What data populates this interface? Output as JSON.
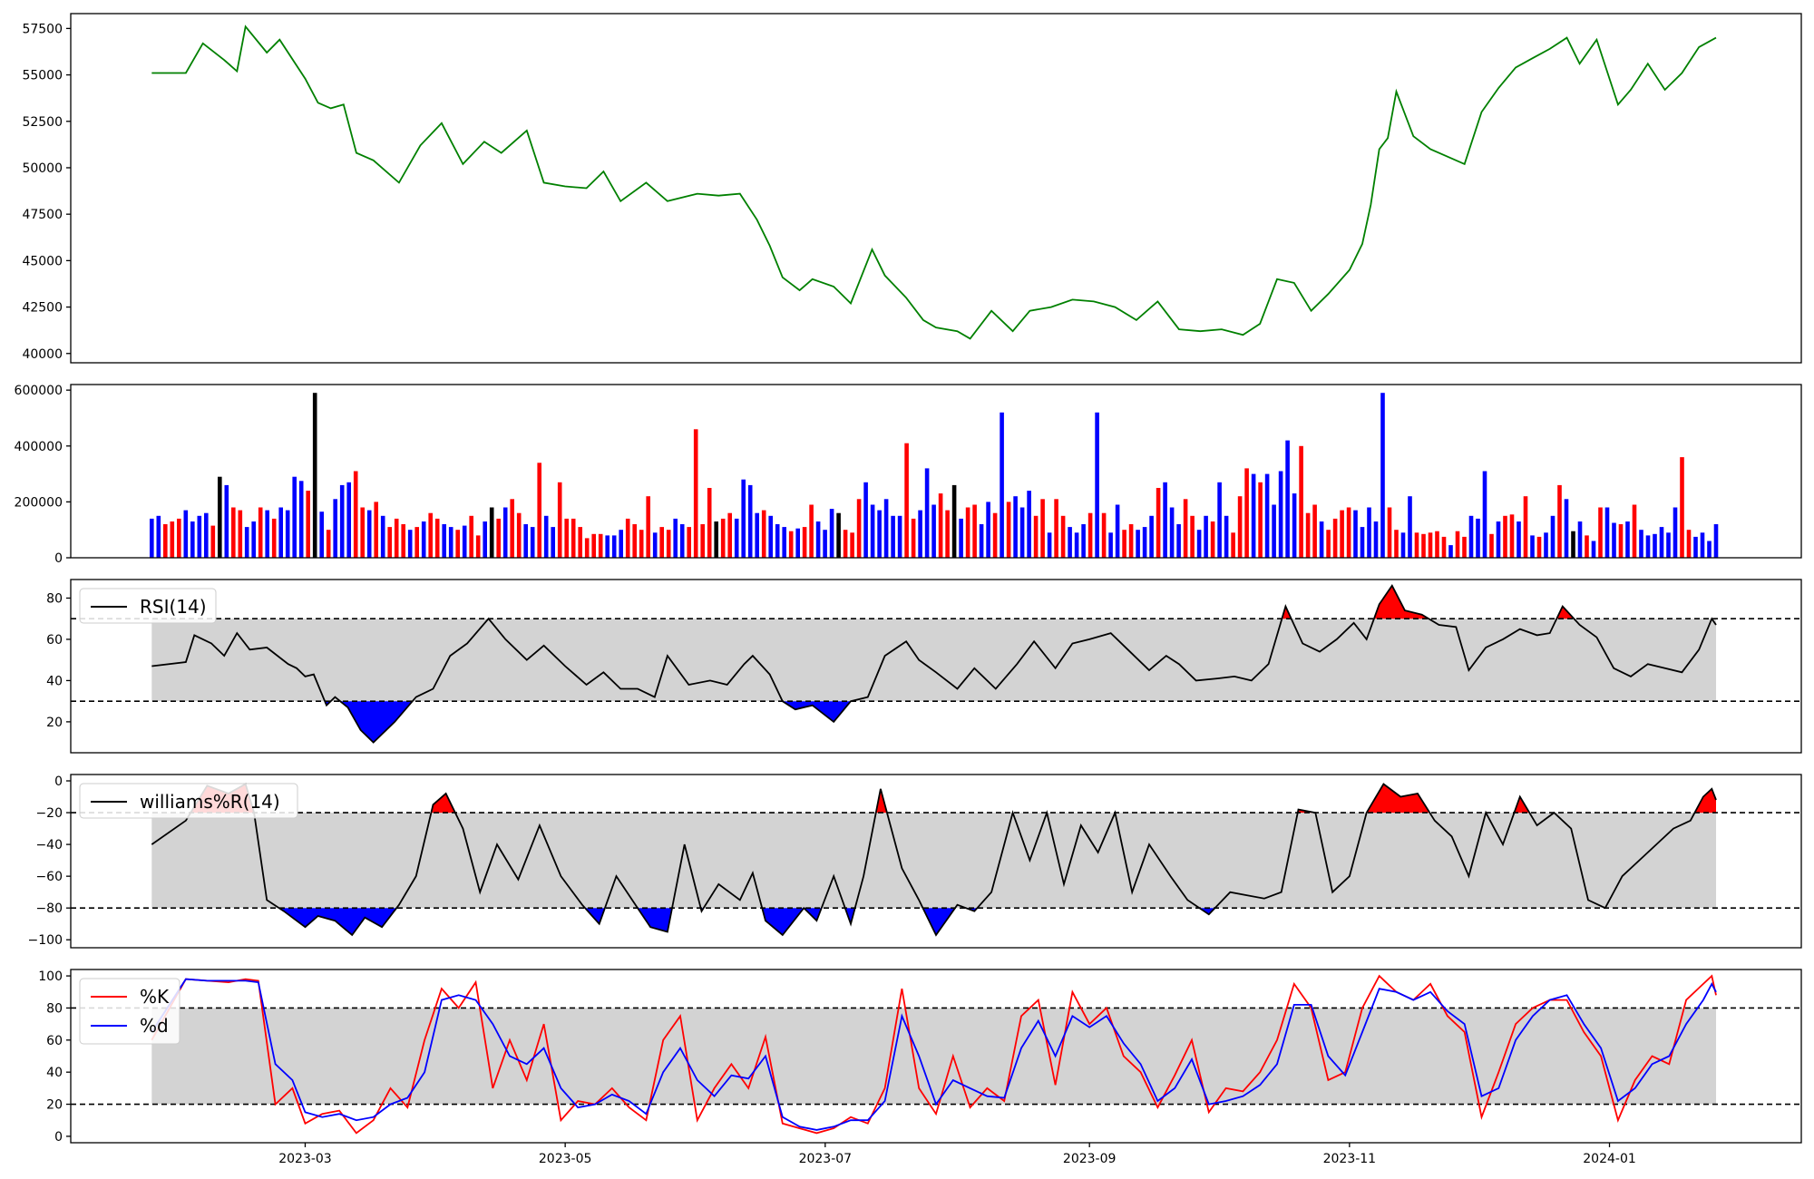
{
  "chart_data": [
    {
      "type": "line",
      "name": "price",
      "color": "#008000",
      "ylim": [
        39500,
        58300
      ],
      "yticks": [
        40000,
        42500,
        45000,
        47500,
        50000,
        52500,
        55000,
        57500
      ],
      "x": [
        "2023-01-24",
        "2023-02-01",
        "2023-02-05",
        "2023-02-10",
        "2023-02-13",
        "2023-02-15",
        "2023-02-20",
        "2023-02-23",
        "2023-03-01",
        "2023-03-04",
        "2023-03-07",
        "2023-03-10",
        "2023-03-13",
        "2023-03-17",
        "2023-03-23",
        "2023-03-28",
        "2023-04-02",
        "2023-04-07",
        "2023-04-12",
        "2023-04-16",
        "2023-04-22",
        "2023-04-26",
        "2023-05-01",
        "2023-05-06",
        "2023-05-10",
        "2023-05-14",
        "2023-05-20",
        "2023-05-25",
        "2023-06-01",
        "2023-06-06",
        "2023-06-11",
        "2023-06-15",
        "2023-06-18",
        "2023-06-21",
        "2023-06-25",
        "2023-06-28",
        "2023-07-03",
        "2023-07-07",
        "2023-07-12",
        "2023-07-15",
        "2023-07-20",
        "2023-07-24",
        "2023-07-27",
        "2023-08-01",
        "2023-08-04",
        "2023-08-09",
        "2023-08-14",
        "2023-08-18",
        "2023-08-23",
        "2023-08-28",
        "2023-09-02",
        "2023-09-07",
        "2023-09-12",
        "2023-09-17",
        "2023-09-22",
        "2023-09-27",
        "2023-10-02",
        "2023-10-07",
        "2023-10-11",
        "2023-10-15",
        "2023-10-19",
        "2023-10-23",
        "2023-10-27",
        "2023-11-01",
        "2023-11-04",
        "2023-11-06",
        "2023-11-08",
        "2023-11-10",
        "2023-11-12",
        "2023-11-16",
        "2023-11-20",
        "2023-11-24",
        "2023-11-28",
        "2023-12-02",
        "2023-12-06",
        "2023-12-10",
        "2023-12-14",
        "2023-12-18",
        "2023-12-22",
        "2023-12-25",
        "2023-12-29",
        "2024-01-03",
        "2024-01-06",
        "2024-01-10",
        "2024-01-14",
        "2024-01-18",
        "2024-01-22",
        "2024-01-26"
      ],
      "y": [
        55100,
        55100,
        56700,
        55800,
        55200,
        57600,
        56200,
        56900,
        54800,
        53500,
        53200,
        53400,
        50800,
        50400,
        49200,
        51200,
        52400,
        50200,
        51400,
        50800,
        52000,
        49200,
        49000,
        48900,
        49800,
        48200,
        49200,
        48200,
        48600,
        48500,
        48600,
        47200,
        45800,
        44100,
        43400,
        44000,
        43600,
        42700,
        45600,
        44200,
        43000,
        41800,
        41400,
        41200,
        40800,
        42300,
        41200,
        42300,
        42500,
        42900,
        42800,
        42500,
        41800,
        42800,
        41300,
        41200,
        41300,
        41000,
        41600,
        44000,
        43800,
        42300,
        43200,
        44500,
        45900,
        48000,
        51000,
        51600,
        54100,
        51700,
        51000,
        50600,
        50200,
        53000,
        54300,
        55400,
        55900,
        56400,
        57000,
        55600,
        56900,
        53400,
        54200,
        55600,
        54200,
        55100,
        56500,
        57000
      ]
    },
    {
      "type": "bar",
      "name": "volume",
      "ylim": [
        0,
        620000
      ],
      "yticks": [
        0,
        200000,
        400000,
        600000
      ],
      "color_codes": {
        "r": "#ff0000",
        "b": "#0000ff",
        "k": "#000000"
      },
      "start": "2023-01-24",
      "end": "2024-01-26",
      "values": [
        140000,
        150000,
        120000,
        130000,
        140000,
        170000,
        130000,
        150000,
        160000,
        115000,
        290000,
        260000,
        180000,
        170000,
        110000,
        130000,
        180000,
        170000,
        140000,
        180000,
        170000,
        290000,
        275000,
        240000,
        590000,
        165000,
        100000,
        210000,
        260000,
        270000,
        310000,
        180000,
        170000,
        200000,
        150000,
        110000,
        140000,
        120000,
        100000,
        110000,
        130000,
        160000,
        140000,
        120000,
        110000,
        100000,
        115000,
        150000,
        80000,
        130000,
        180000,
        140000,
        180000,
        210000,
        160000,
        120000,
        110000,
        340000,
        150000,
        110000,
        270000,
        140000,
        140000,
        110000,
        70000,
        85000,
        85000,
        80000,
        80000,
        100000,
        140000,
        120000,
        100000,
        220000,
        90000,
        110000,
        100000,
        140000,
        120000,
        110000,
        460000,
        120000,
        250000,
        130000,
        140000,
        160000,
        140000,
        280000,
        260000,
        160000,
        170000,
        150000,
        120000,
        110000,
        95000,
        105000,
        110000,
        190000,
        130000,
        100000,
        175000,
        160000,
        100000,
        90000,
        210000,
        270000,
        190000,
        170000,
        210000,
        150000,
        150000,
        410000,
        140000,
        170000,
        320000,
        190000,
        230000,
        170000,
        260000,
        140000,
        180000,
        190000,
        120000,
        200000,
        160000,
        520000,
        200000,
        220000,
        180000,
        240000,
        150000,
        210000,
        90000,
        210000,
        150000,
        110000,
        90000,
        120000,
        160000,
        520000,
        160000,
        90000,
        190000,
        100000,
        120000,
        100000,
        110000,
        150000,
        250000,
        270000,
        180000,
        120000,
        210000,
        150000,
        100000,
        150000,
        130000,
        270000,
        150000,
        90000,
        220000,
        320000,
        300000,
        270000,
        300000,
        190000,
        310000,
        420000,
        230000,
        400000,
        160000,
        190000,
        130000,
        100000,
        140000,
        170000,
        180000,
        170000,
        110000,
        180000,
        130000,
        590000,
        180000,
        100000,
        90000,
        220000,
        90000,
        85000,
        90000,
        95000,
        75000,
        45000,
        95000,
        75000,
        150000,
        140000,
        310000,
        85000,
        130000,
        150000,
        155000,
        130000,
        220000,
        80000,
        75000,
        90000,
        150000,
        260000,
        210000,
        95000,
        130000,
        80000,
        60000,
        180000,
        180000,
        125000,
        120000,
        130000,
        190000,
        100000,
        80000,
        85000,
        110000,
        90000,
        180000,
        360000,
        100000,
        75000,
        90000,
        60000,
        120000
      ],
      "colors": "bbrrrbbbbrkbrrbbrbrbbbbrkbrbbbrrbrbrrrbrbrrbbrbrrbkrbrrbbrbbrrrrrrrbbbrrrrbrrbbrrrrkrrbbbbrbbbrbrrbbbkrrrbbbbbbrrbbbrrkbrrbbrbrbbbrrbrrbbbrbrbbrrbbbrbbbrrbbrbbrrrbrbbbbbrrrbrrrrbbbbbrrbbrrrrrbrrbbbrbrrbrbrbbrbkbrbrbbrbrbbbbbbrrbb"
    },
    {
      "type": "area",
      "name": "RSI(14)",
      "legend": [
        "RSI(14)"
      ],
      "ylim": [
        5,
        89
      ],
      "yticks": [
        20,
        40,
        60,
        80
      ],
      "upper": 70,
      "lower": 30,
      "x": [
        "2023-01-24",
        "2023-02-01",
        "2023-02-03",
        "2023-02-07",
        "2023-02-10",
        "2023-02-13",
        "2023-02-16",
        "2023-02-20",
        "2023-02-25",
        "2023-02-27",
        "2023-03-01",
        "2023-03-03",
        "2023-03-06",
        "2023-03-08",
        "2023-03-11",
        "2023-03-14",
        "2023-03-17",
        "2023-03-22",
        "2023-03-27",
        "2023-03-31",
        "2023-04-04",
        "2023-04-08",
        "2023-04-13",
        "2023-04-17",
        "2023-04-22",
        "2023-04-26",
        "2023-05-01",
        "2023-05-06",
        "2023-05-10",
        "2023-05-14",
        "2023-05-18",
        "2023-05-22",
        "2023-05-25",
        "2023-05-30",
        "2023-06-04",
        "2023-06-08",
        "2023-06-12",
        "2023-06-14",
        "2023-06-18",
        "2023-06-21",
        "2023-06-24",
        "2023-06-28",
        "2023-07-03",
        "2023-07-07",
        "2023-07-11",
        "2023-07-15",
        "2023-07-20",
        "2023-07-23",
        "2023-07-27",
        "2023-08-01",
        "2023-08-05",
        "2023-08-10",
        "2023-08-15",
        "2023-08-19",
        "2023-08-24",
        "2023-08-28",
        "2023-09-01",
        "2023-09-06",
        "2023-09-10",
        "2023-09-15",
        "2023-09-19",
        "2023-09-22",
        "2023-09-26",
        "2023-10-01",
        "2023-10-05",
        "2023-10-09",
        "2023-10-13",
        "2023-10-17",
        "2023-10-21",
        "2023-10-25",
        "2023-10-29",
        "2023-11-02",
        "2023-11-05",
        "2023-11-08",
        "2023-11-11",
        "2023-11-14",
        "2023-11-18",
        "2023-11-22",
        "2023-11-26",
        "2023-11-29",
        "2023-12-03",
        "2023-12-07",
        "2023-12-11",
        "2023-12-15",
        "2023-12-18",
        "2023-12-21",
        "2023-12-25",
        "2023-12-29",
        "2024-01-02",
        "2024-01-06",
        "2024-01-10",
        "2024-01-14",
        "2024-01-18",
        "2024-01-22",
        "2024-01-25",
        "2024-01-26"
      ],
      "y": [
        47,
        49,
        62,
        58,
        52,
        63,
        55,
        56,
        48,
        46,
        42,
        43,
        28,
        32,
        27,
        16,
        10,
        20,
        32,
        36,
        52,
        58,
        70,
        60,
        50,
        57,
        47,
        38,
        44,
        36,
        36,
        32,
        52,
        38,
        40,
        38,
        48,
        52,
        43,
        30,
        26,
        28,
        20,
        30,
        32,
        52,
        59,
        50,
        44,
        36,
        46,
        36,
        48,
        59,
        46,
        58,
        60,
        63,
        55,
        45,
        52,
        48,
        40,
        41,
        42,
        40,
        48,
        76,
        58,
        54,
        60,
        68,
        60,
        77,
        86,
        74,
        72,
        67,
        66,
        45,
        56,
        60,
        65,
        62,
        63,
        76,
        67,
        61,
        46,
        42,
        48,
        46,
        44,
        55,
        70,
        67
      ]
    },
    {
      "type": "area",
      "name": "williams%R(14)",
      "legend": [
        "williams%R(14)"
      ],
      "ylim": [
        -105,
        4
      ],
      "yticks": [
        -100,
        -80,
        -60,
        -40,
        -20,
        0
      ],
      "upper": -20,
      "lower": -80,
      "x": [
        "2023-01-24",
        "2023-02-01",
        "2023-02-06",
        "2023-02-11",
        "2023-02-15",
        "2023-02-17",
        "2023-02-20",
        "2023-02-24",
        "2023-03-01",
        "2023-03-04",
        "2023-03-08",
        "2023-03-12",
        "2023-03-15",
        "2023-03-19",
        "2023-03-23",
        "2023-03-27",
        "2023-03-31",
        "2023-04-03",
        "2023-04-07",
        "2023-04-11",
        "2023-04-15",
        "2023-04-20",
        "2023-04-25",
        "2023-04-30",
        "2023-05-05",
        "2023-05-09",
        "2023-05-13",
        "2023-05-18",
        "2023-05-21",
        "2023-05-25",
        "2023-05-29",
        "2023-06-02",
        "2023-06-06",
        "2023-06-11",
        "2023-06-14",
        "2023-06-17",
        "2023-06-21",
        "2023-06-26",
        "2023-06-29",
        "2023-07-03",
        "2023-07-07",
        "2023-07-10",
        "2023-07-14",
        "2023-07-19",
        "2023-07-23",
        "2023-07-27",
        "2023-08-01",
        "2023-08-05",
        "2023-08-09",
        "2023-08-14",
        "2023-08-18",
        "2023-08-22",
        "2023-08-26",
        "2023-08-30",
        "2023-09-03",
        "2023-09-07",
        "2023-09-11",
        "2023-09-15",
        "2023-09-20",
        "2023-09-24",
        "2023-09-29",
        "2023-10-04",
        "2023-10-08",
        "2023-10-12",
        "2023-10-16",
        "2023-10-20",
        "2023-10-24",
        "2023-10-28",
        "2023-11-01",
        "2023-11-05",
        "2023-11-09",
        "2023-11-13",
        "2023-11-17",
        "2023-11-21",
        "2023-11-25",
        "2023-11-29",
        "2023-12-03",
        "2023-12-07",
        "2023-12-11",
        "2023-12-15",
        "2023-12-19",
        "2023-12-23",
        "2023-12-27",
        "2023-12-31",
        "2024-01-04",
        "2024-01-08",
        "2024-01-12",
        "2024-01-16",
        "2024-01-20",
        "2024-01-23",
        "2024-01-25",
        "2024-01-26"
      ],
      "y": [
        -40,
        -25,
        -3,
        -8,
        -2,
        -20,
        -75,
        -82,
        -92,
        -85,
        -88,
        -97,
        -86,
        -92,
        -78,
        -60,
        -15,
        -8,
        -30,
        -70,
        -40,
        -62,
        -28,
        -60,
        -78,
        -90,
        -60,
        -80,
        -92,
        -95,
        -40,
        -82,
        -65,
        -75,
        -58,
        -88,
        -97,
        -80,
        -88,
        -60,
        -90,
        -60,
        -5,
        -55,
        -75,
        -97,
        -78,
        -82,
        -70,
        -20,
        -50,
        -20,
        -65,
        -28,
        -45,
        -20,
        -70,
        -40,
        -60,
        -75,
        -84,
        -70,
        -72,
        -74,
        -70,
        -18,
        -20,
        -70,
        -60,
        -20,
        -2,
        -10,
        -8,
        -25,
        -35,
        -60,
        -20,
        -40,
        -10,
        -28,
        -20,
        -30,
        -75,
        -80,
        -60,
        -50,
        -40,
        -30,
        -25,
        -10,
        -5,
        -12
      ]
    },
    {
      "type": "line",
      "name": "stochastic",
      "legend": [
        "%K",
        "%d"
      ],
      "ylim": [
        -4,
        104
      ],
      "yticks": [
        0,
        20,
        40,
        60,
        80,
        100
      ],
      "upper": 80,
      "lower": 20,
      "x": [
        "2023-01-24",
        "2023-02-01",
        "2023-02-06",
        "2023-02-11",
        "2023-02-15",
        "2023-02-18",
        "2023-02-22",
        "2023-02-26",
        "2023-03-01",
        "2023-03-05",
        "2023-03-09",
        "2023-03-13",
        "2023-03-17",
        "2023-03-21",
        "2023-03-25",
        "2023-03-29",
        "2023-04-02",
        "2023-04-06",
        "2023-04-10",
        "2023-04-14",
        "2023-04-18",
        "2023-04-22",
        "2023-04-26",
        "2023-04-30",
        "2023-05-04",
        "2023-05-08",
        "2023-05-12",
        "2023-05-16",
        "2023-05-20",
        "2023-05-24",
        "2023-05-28",
        "2023-06-01",
        "2023-06-05",
        "2023-06-09",
        "2023-06-13",
        "2023-06-17",
        "2023-06-21",
        "2023-06-25",
        "2023-06-29",
        "2023-07-03",
        "2023-07-07",
        "2023-07-11",
        "2023-07-15",
        "2023-07-19",
        "2023-07-23",
        "2023-07-27",
        "2023-07-31",
        "2023-08-04",
        "2023-08-08",
        "2023-08-12",
        "2023-08-16",
        "2023-08-20",
        "2023-08-24",
        "2023-08-28",
        "2023-09-01",
        "2023-09-05",
        "2023-09-09",
        "2023-09-13",
        "2023-09-17",
        "2023-09-21",
        "2023-09-25",
        "2023-09-29",
        "2023-10-03",
        "2023-10-07",
        "2023-10-11",
        "2023-10-15",
        "2023-10-19",
        "2023-10-23",
        "2023-10-27",
        "2023-10-31",
        "2023-11-04",
        "2023-11-08",
        "2023-11-12",
        "2023-11-16",
        "2023-11-20",
        "2023-11-24",
        "2023-11-28",
        "2023-12-02",
        "2023-12-06",
        "2023-12-10",
        "2023-12-14",
        "2023-12-18",
        "2023-12-22",
        "2023-12-26",
        "2023-12-30",
        "2024-01-03",
        "2024-01-07",
        "2024-01-11",
        "2024-01-15",
        "2024-01-19",
        "2024-01-23",
        "2024-01-25",
        "2024-01-26"
      ],
      "k": [
        60,
        98,
        97,
        96,
        98,
        97,
        20,
        30,
        8,
        14,
        16,
        2,
        10,
        30,
        18,
        60,
        92,
        80,
        96,
        30,
        60,
        35,
        70,
        10,
        22,
        20,
        30,
        18,
        10,
        60,
        75,
        10,
        30,
        45,
        30,
        62,
        8,
        5,
        2,
        5,
        12,
        8,
        30,
        92,
        30,
        14,
        50,
        18,
        30,
        22,
        75,
        85,
        32,
        90,
        70,
        80,
        50,
        40,
        18,
        38,
        60,
        15,
        30,
        28,
        40,
        60,
        95,
        80,
        35,
        40,
        80,
        100,
        90,
        85,
        95,
        75,
        65,
        12,
        40,
        70,
        80,
        85,
        85,
        65,
        50,
        10,
        35,
        50,
        45,
        85,
        95,
        100,
        88
      ],
      "d": [
        65,
        98,
        97,
        97,
        97,
        96,
        45,
        35,
        15,
        12,
        14,
        10,
        12,
        20,
        24,
        40,
        85,
        88,
        85,
        70,
        50,
        45,
        55,
        30,
        18,
        20,
        26,
        22,
        14,
        40,
        55,
        35,
        25,
        38,
        36,
        50,
        12,
        6,
        4,
        6,
        10,
        10,
        22,
        75,
        50,
        20,
        35,
        30,
        25,
        24,
        55,
        72,
        50,
        75,
        68,
        75,
        58,
        45,
        22,
        30,
        48,
        20,
        22,
        25,
        32,
        45,
        82,
        82,
        50,
        38,
        65,
        92,
        90,
        85,
        90,
        78,
        70,
        25,
        30,
        60,
        75,
        85,
        88,
        70,
        55,
        22,
        30,
        45,
        50,
        70,
        85,
        95,
        90
      ]
    }
  ],
  "x_axis": {
    "ticks": [
      "2023-03",
      "2023-05",
      "2023-07",
      "2023-09",
      "2023-11",
      "2024-01"
    ],
    "range": [
      "2023-01-05",
      "2024-02-15"
    ]
  }
}
